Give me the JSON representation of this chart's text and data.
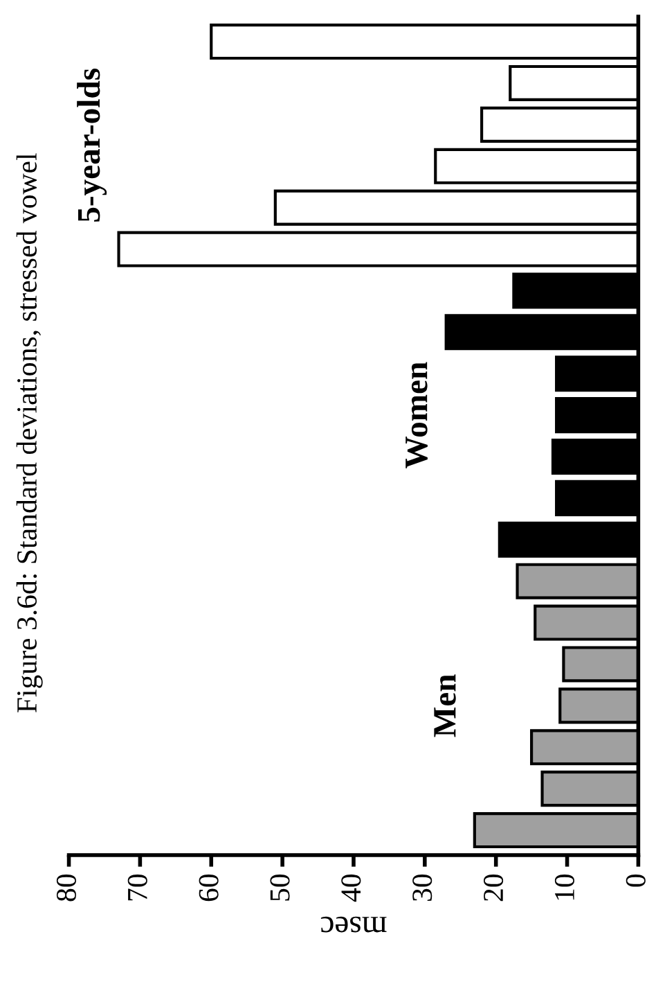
{
  "chart_data": {
    "type": "bar",
    "orientation": "horizontal",
    "title": "Figure 3.6d: Standard deviations, stressed vowel",
    "xlabel": "msec",
    "categories": [
      null,
      null,
      null,
      null,
      null,
      null,
      null,
      null,
      null,
      null,
      null,
      null,
      null,
      null,
      null,
      null,
      null,
      null,
      null,
      null
    ],
    "series": [
      {
        "name": "5-year-olds",
        "color": "#ffffff",
        "values": [
          60,
          18,
          22,
          28.5,
          51,
          73,
          null,
          null,
          null,
          null,
          null,
          null,
          null,
          null,
          null,
          null,
          null,
          null,
          null,
          null
        ]
      },
      {
        "name": "Women",
        "color": "#000000",
        "values": [
          null,
          null,
          null,
          null,
          null,
          null,
          17.5,
          27,
          11.5,
          11.5,
          12,
          11.5,
          19.5,
          null,
          null,
          null,
          null,
          null,
          null,
          null
        ]
      },
      {
        "name": "Men",
        "color": "#a0a0a0",
        "values": [
          null,
          null,
          null,
          null,
          null,
          null,
          null,
          null,
          null,
          null,
          null,
          null,
          null,
          17,
          14.5,
          10.5,
          11,
          15,
          13.5,
          23
        ]
      }
    ],
    "xlim": [
      80,
      0
    ],
    "xticks": [
      0,
      10,
      20,
      30,
      40,
      50,
      60,
      70,
      80
    ],
    "grid": false,
    "legend": false
  }
}
